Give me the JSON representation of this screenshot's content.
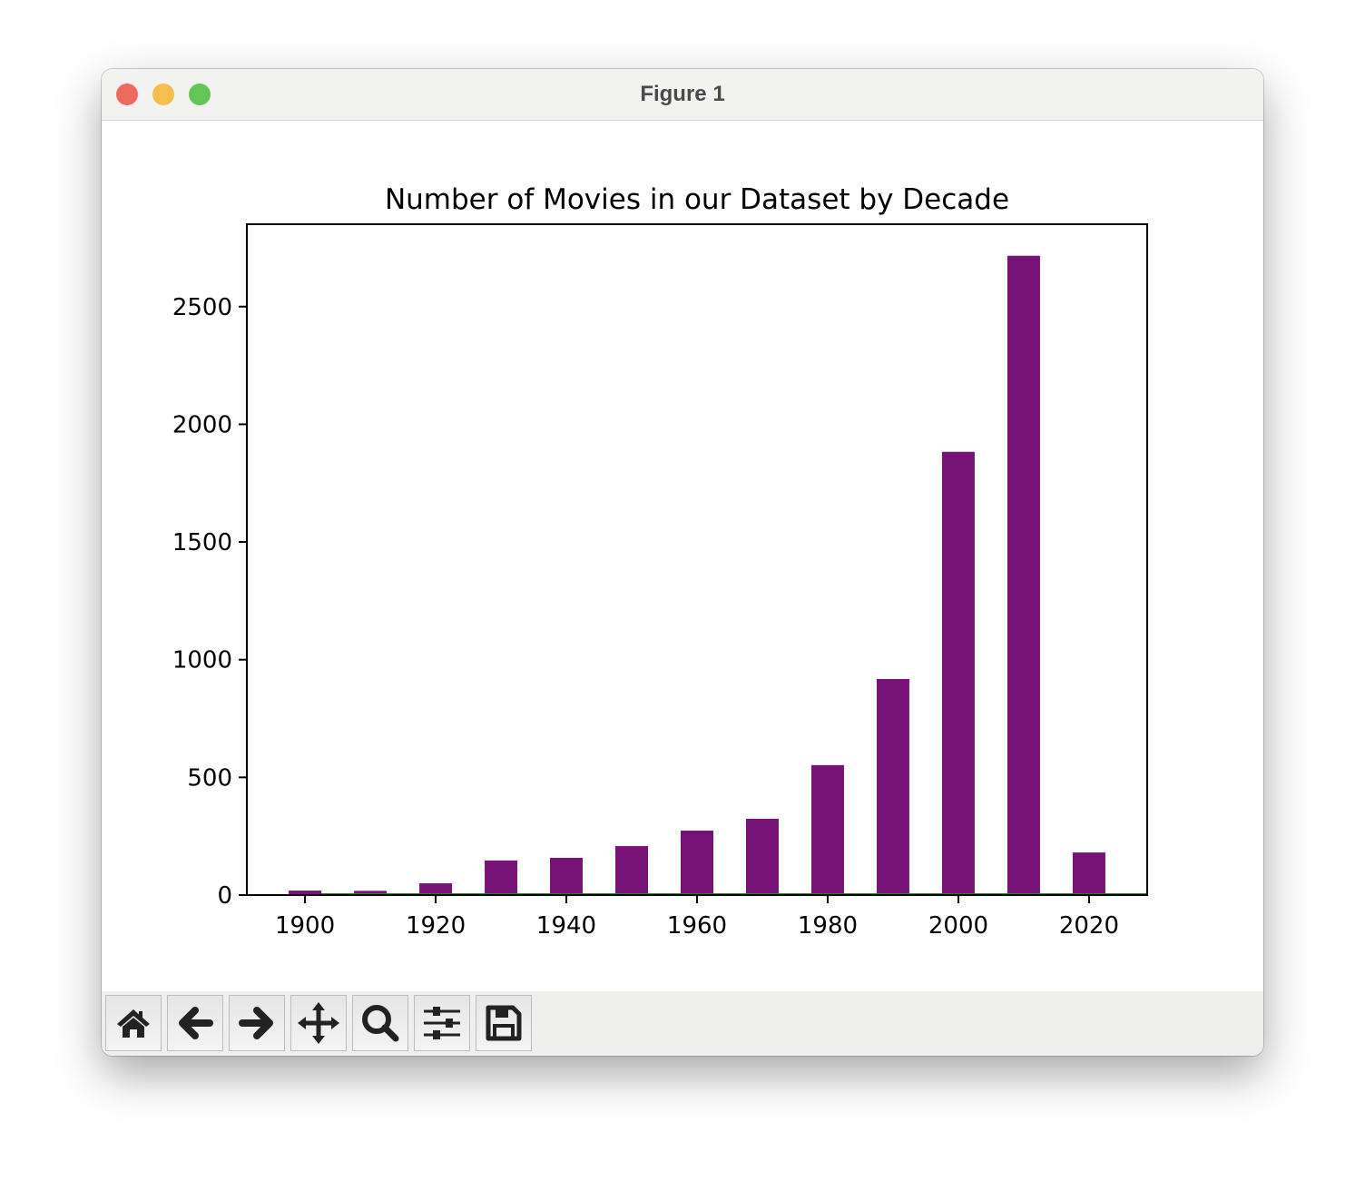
{
  "window": {
    "title": "Figure 1"
  },
  "toolbar": {
    "buttons": [
      {
        "name": "home-button",
        "icon": "home-icon"
      },
      {
        "name": "back-button",
        "icon": "arrow-left-icon"
      },
      {
        "name": "forward-button",
        "icon": "arrow-right-icon"
      },
      {
        "name": "pan-button",
        "icon": "move-icon"
      },
      {
        "name": "zoom-button",
        "icon": "magnifier-icon"
      },
      {
        "name": "configure-subplots-button",
        "icon": "sliders-icon"
      },
      {
        "name": "save-button",
        "icon": "floppy-disk-icon"
      }
    ]
  },
  "chart_data": {
    "type": "bar",
    "title": "Number of Movies in our Dataset by Decade",
    "xlabel": "",
    "ylabel": "",
    "x": [
      1900,
      1910,
      1920,
      1930,
      1940,
      1950,
      1960,
      1970,
      1980,
      1990,
      2000,
      2010,
      2020
    ],
    "values": [
      19,
      18,
      50,
      147,
      158,
      208,
      274,
      324,
      552,
      918,
      1883,
      2716,
      181
    ],
    "bar_width_years": 5,
    "bar_color": "#771378",
    "line_series": {
      "color": "#2e7d1e",
      "x": [
        1902.5,
        2028.9
      ],
      "values": [
        0,
        0
      ]
    },
    "xlim": [
      1891.1,
      2028.9
    ],
    "ylim": [
      0,
      2850
    ],
    "xticks": [
      1900,
      1920,
      1940,
      1960,
      1980,
      2000,
      2020
    ],
    "yticks": [
      0,
      500,
      1000,
      1500,
      2000,
      2500
    ],
    "grid": false
  }
}
